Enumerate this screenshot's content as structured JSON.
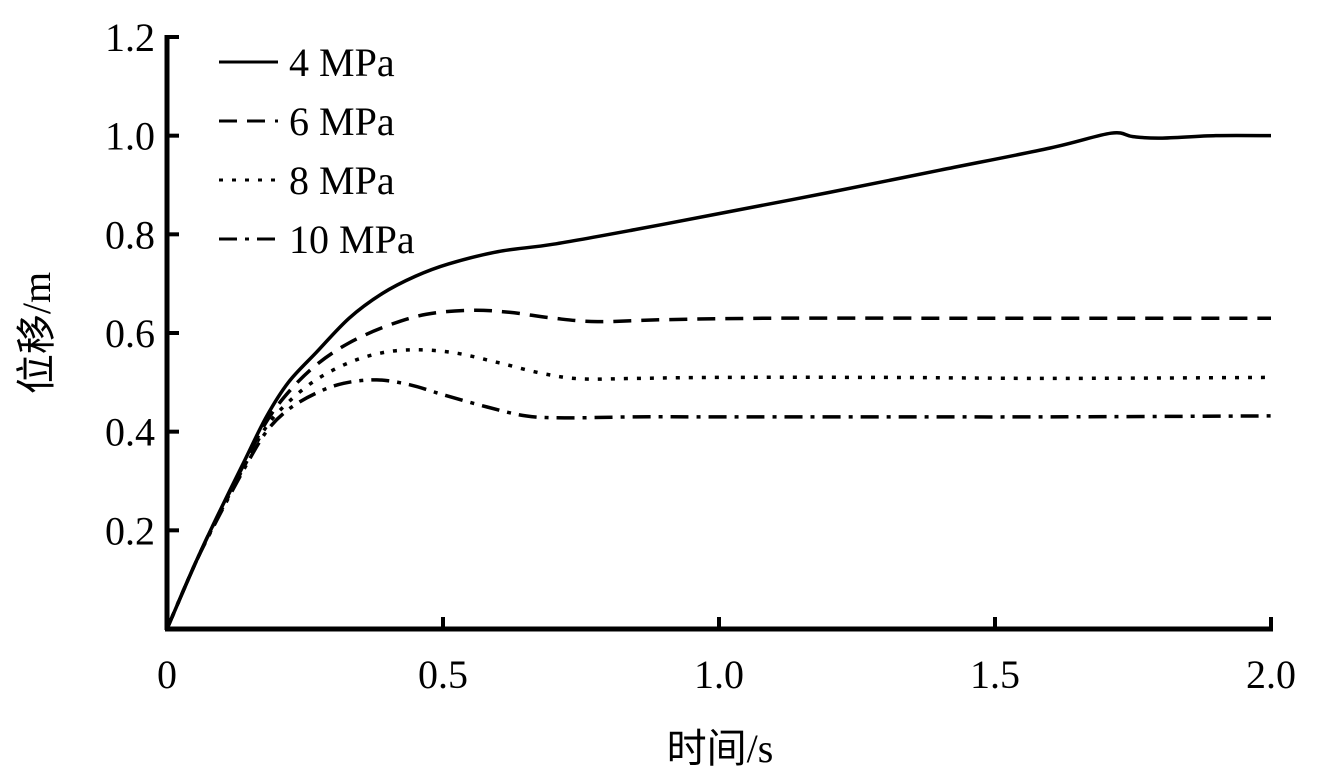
{
  "chart_data": {
    "type": "line",
    "title": "",
    "xlabel": "时间/s",
    "ylabel": "位移/m",
    "xlim": [
      0,
      2.0
    ],
    "ylim": [
      0,
      1.2
    ],
    "xticks": [
      0,
      0.5,
      1.0,
      1.5,
      2.0
    ],
    "xtick_labels": [
      "0",
      "0.5",
      "1.0",
      "1.5",
      "2.0"
    ],
    "yticks": [
      0.2,
      0.4,
      0.6,
      0.8,
      1.0,
      1.2
    ],
    "ytick_labels": [
      "0.2",
      "0.4",
      "0.6",
      "0.8",
      "1.0",
      "1.2"
    ],
    "grid": false,
    "legend_position": "top-left",
    "series": [
      {
        "name": "4 MPa",
        "style": "solid",
        "color": "#000000",
        "x": [
          0,
          0.05,
          0.09,
          0.14,
          0.18,
          0.22,
          0.27,
          0.33,
          0.39,
          0.45,
          0.51,
          0.6,
          0.7,
          0.85,
          1.0,
          1.2,
          1.4,
          1.6,
          1.71,
          1.75,
          1.8,
          1.9,
          2.0
        ],
        "y": [
          0,
          0.13,
          0.226,
          0.34,
          0.43,
          0.5,
          0.56,
          0.63,
          0.68,
          0.715,
          0.74,
          0.765,
          0.78,
          0.81,
          0.842,
          0.885,
          0.93,
          0.975,
          1.005,
          0.998,
          0.995,
          1.0,
          1.0
        ]
      },
      {
        "name": "6 MPa",
        "style": "dashed",
        "color": "#000000",
        "x": [
          0,
          0.05,
          0.09,
          0.14,
          0.18,
          0.22,
          0.27,
          0.33,
          0.4,
          0.47,
          0.55,
          0.62,
          0.7,
          0.78,
          0.9,
          1.1,
          1.4,
          1.7,
          2.0
        ],
        "y": [
          0,
          0.13,
          0.225,
          0.335,
          0.42,
          0.48,
          0.535,
          0.58,
          0.615,
          0.638,
          0.646,
          0.642,
          0.63,
          0.623,
          0.627,
          0.63,
          0.63,
          0.63,
          0.63
        ]
      },
      {
        "name": "8 MPa",
        "style": "dotted",
        "color": "#000000",
        "x": [
          0,
          0.05,
          0.09,
          0.14,
          0.18,
          0.22,
          0.27,
          0.33,
          0.39,
          0.45,
          0.52,
          0.6,
          0.68,
          0.75,
          0.85,
          1.0,
          1.3,
          1.6,
          2.0
        ],
        "y": [
          0,
          0.13,
          0.222,
          0.33,
          0.41,
          0.46,
          0.505,
          0.54,
          0.56,
          0.566,
          0.56,
          0.54,
          0.518,
          0.507,
          0.508,
          0.51,
          0.51,
          0.508,
          0.51
        ]
      },
      {
        "name": "10 MPa",
        "style": "dashdot",
        "color": "#000000",
        "x": [
          0,
          0.05,
          0.09,
          0.14,
          0.18,
          0.22,
          0.27,
          0.32,
          0.38,
          0.44,
          0.5,
          0.58,
          0.65,
          0.72,
          0.85,
          1.0,
          1.3,
          1.6,
          2.0
        ],
        "y": [
          0,
          0.13,
          0.22,
          0.325,
          0.4,
          0.445,
          0.478,
          0.498,
          0.505,
          0.495,
          0.475,
          0.45,
          0.432,
          0.428,
          0.43,
          0.43,
          0.43,
          0.43,
          0.432
        ]
      }
    ]
  }
}
